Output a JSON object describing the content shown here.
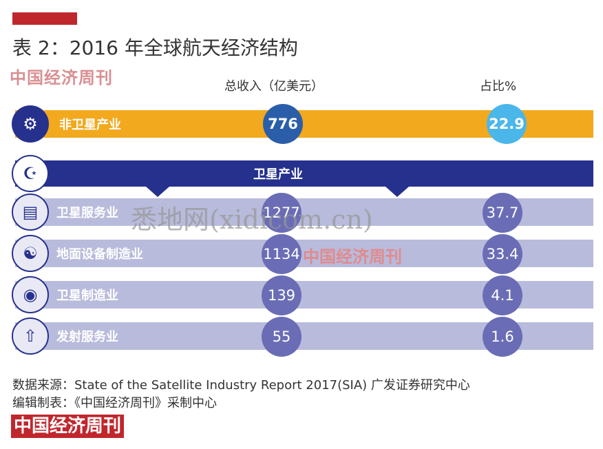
{
  "title": "表 2：2016 年全球航天经济结构",
  "watermark_top": "中国经济周刊",
  "watermark_mid": "中国经济周刊",
  "watermark_site": "悉地网(xidicom.cn)",
  "chart_data": {
    "type": "table",
    "columns": [
      "总收入（亿美元）",
      "占比%"
    ],
    "rows": [
      {
        "category": "非卫星产业",
        "revenue": 776,
        "share": 22.9,
        "icon": "robot-icon"
      },
      {
        "category": "卫星产业",
        "revenue": null,
        "share": null,
        "icon": "satellite-icon",
        "group_header": true
      },
      {
        "category": "卫星服务业",
        "revenue": 1277,
        "share": 37.7,
        "icon": "server-icon"
      },
      {
        "category": "地面设备制造业",
        "revenue": 1134,
        "share": 33.4,
        "icon": "ground-station-icon"
      },
      {
        "category": "卫星制造业",
        "revenue": 139,
        "share": 4.1,
        "icon": "capsule-icon"
      },
      {
        "category": "发射服务业",
        "revenue": 55,
        "share": 1.6,
        "icon": "rocket-icon"
      }
    ],
    "colors": {
      "nonsat_bar": "#f2a91e",
      "sat_bar": "#26318e",
      "sub_bar": "#b8bbdb",
      "bubble_purple": "#6a6db5",
      "bubble_blue": "#2b5ea9",
      "bubble_cyan": "#4bb6ea"
    }
  },
  "source_line": "数据来源：State of the Satellite Industry Report 2017(SIA) 广发证券研究中心",
  "editor_line": "编辑制表：《中国经济周刊》采制中心",
  "footer_logo": "中国经济周刊"
}
